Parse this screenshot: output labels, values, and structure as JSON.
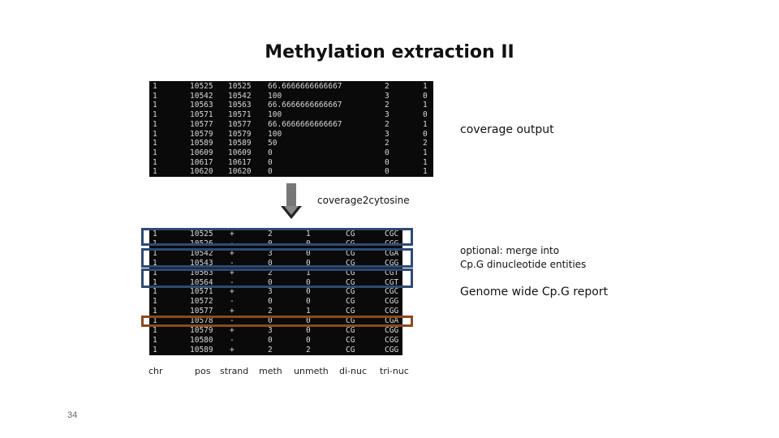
{
  "title": "Methylation extraction II",
  "coverage_label": "coverage output",
  "arrow_label": "coverage2cytosine",
  "merge_label_line1": "optional: merge into",
  "merge_label_line2": "Cp.G dinucleotide entities",
  "report_label": "Genome wide Cp.G report",
  "page_number": "34",
  "coverage_rows": [
    [
      "1",
      "10525",
      "10525",
      "66.6666666666667",
      "2",
      "1"
    ],
    [
      "1",
      "10542",
      "10542",
      "100",
      "3",
      "0"
    ],
    [
      "1",
      "10563",
      "10563",
      "66.6666666666667",
      "2",
      "1"
    ],
    [
      "1",
      "10571",
      "10571",
      "100",
      "3",
      "0"
    ],
    [
      "1",
      "10577",
      "10577",
      "66.6666666666667",
      "2",
      "1"
    ],
    [
      "1",
      "10579",
      "10579",
      "100",
      "3",
      "0"
    ],
    [
      "1",
      "10589",
      "10589",
      "50",
      "2",
      "2"
    ],
    [
      "1",
      "10609",
      "10609",
      "0",
      "0",
      "1"
    ],
    [
      "1",
      "10617",
      "10617",
      "0",
      "0",
      "1"
    ],
    [
      "1",
      "10620",
      "10620",
      "0",
      "0",
      "1"
    ]
  ],
  "cytosine_rows": [
    [
      "1",
      "10525",
      "+",
      "2",
      "1",
      "CG",
      "CGC"
    ],
    [
      "1",
      "10526",
      "-",
      "0",
      "0",
      "CG",
      "CGG"
    ],
    [
      "1",
      "10542",
      "+",
      "3",
      "0",
      "CG",
      "CGA"
    ],
    [
      "1",
      "10543",
      "-",
      "0",
      "0",
      "CG",
      "CGG"
    ],
    [
      "1",
      "10563",
      "+",
      "2",
      "1",
      "CG",
      "CGT"
    ],
    [
      "1",
      "10564",
      "-",
      "0",
      "0",
      "CG",
      "CGT"
    ],
    [
      "1",
      "10571",
      "+",
      "3",
      "0",
      "CG",
      "CGC"
    ],
    [
      "1",
      "10572",
      "-",
      "0",
      "0",
      "CG",
      "CGG"
    ],
    [
      "1",
      "10577",
      "+",
      "2",
      "1",
      "CG",
      "CGG"
    ],
    [
      "1",
      "10578",
      "-",
      "0",
      "0",
      "CG",
      "CGA"
    ],
    [
      "1",
      "10579",
      "+",
      "3",
      "0",
      "CG",
      "CGG"
    ],
    [
      "1",
      "10580",
      "-",
      "0",
      "0",
      "CG",
      "CGG"
    ],
    [
      "1",
      "10589",
      "+",
      "2",
      "2",
      "CG",
      "CGG"
    ]
  ],
  "columns": [
    "chr",
    "pos",
    "strand",
    "meth",
    "unmeth",
    "di-nuc",
    "tri-nuc"
  ],
  "colors": {
    "box_blue": "#2e4a74",
    "box_brown": "#8b4a1e",
    "terminal_bg": "#0a0a0a"
  }
}
